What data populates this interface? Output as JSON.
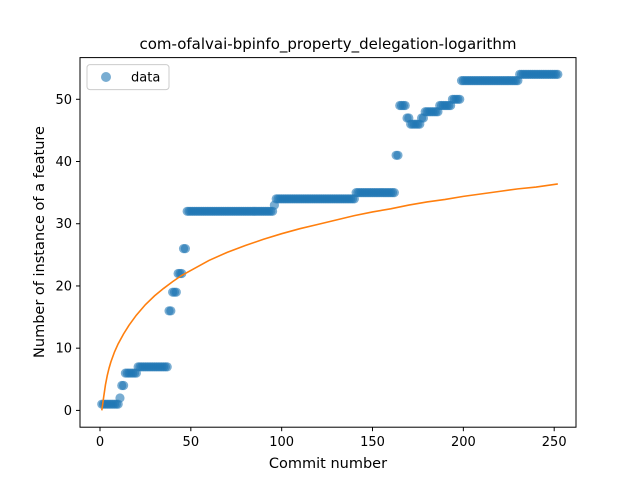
{
  "chart_data": {
    "type": "scatter",
    "title": "com-ofalvai-bpinfo_property_delegation-logarithm",
    "xlabel": "Commit number",
    "ylabel": "Number of instance of a feature",
    "xlim": [
      -11,
      262
    ],
    "ylim": [
      -2.7,
      56.7
    ],
    "xticks": [
      0,
      50,
      100,
      150,
      200,
      250
    ],
    "yticks": [
      0,
      10,
      20,
      30,
      40,
      50
    ],
    "legend": {
      "placement": "top-left",
      "entries": [
        "data"
      ]
    },
    "colors": {
      "data": "#1f77b4",
      "fit": "#ff7f0e"
    },
    "series": [
      {
        "name": "data",
        "kind": "scatter",
        "points": [
          [
            1,
            1
          ],
          [
            2,
            1
          ],
          [
            3,
            1
          ],
          [
            4,
            1
          ],
          [
            5,
            1
          ],
          [
            6,
            1
          ],
          [
            7,
            1
          ],
          [
            8,
            1
          ],
          [
            9,
            1
          ],
          [
            10,
            1
          ],
          [
            11,
            2
          ],
          [
            12,
            4
          ],
          [
            13,
            4
          ],
          [
            14,
            6
          ],
          [
            15,
            6
          ],
          [
            16,
            6
          ],
          [
            17,
            6
          ],
          [
            18,
            6
          ],
          [
            19,
            6
          ],
          [
            20,
            6
          ],
          [
            21,
            7
          ],
          [
            22,
            7
          ],
          [
            23,
            7
          ],
          [
            24,
            7
          ],
          [
            25,
            7
          ],
          [
            26,
            7
          ],
          [
            27,
            7
          ],
          [
            28,
            7
          ],
          [
            29,
            7
          ],
          [
            30,
            7
          ],
          [
            31,
            7
          ],
          [
            32,
            7
          ],
          [
            33,
            7
          ],
          [
            34,
            7
          ],
          [
            35,
            7
          ],
          [
            36,
            7
          ],
          [
            37,
            7
          ],
          [
            38,
            16
          ],
          [
            39,
            16
          ],
          [
            40,
            19
          ],
          [
            41,
            19
          ],
          [
            42,
            19
          ],
          [
            43,
            22
          ],
          [
            44,
            22
          ],
          [
            45,
            22
          ],
          [
            46,
            26
          ],
          [
            47,
            26
          ],
          [
            48,
            32
          ],
          [
            49,
            32
          ],
          [
            50,
            32
          ],
          [
            51,
            32
          ],
          [
            52,
            32
          ],
          [
            53,
            32
          ],
          [
            54,
            32
          ],
          [
            55,
            32
          ],
          [
            56,
            32
          ],
          [
            57,
            32
          ],
          [
            58,
            32
          ],
          [
            59,
            32
          ],
          [
            60,
            32
          ],
          [
            61,
            32
          ],
          [
            62,
            32
          ],
          [
            63,
            32
          ],
          [
            64,
            32
          ],
          [
            65,
            32
          ],
          [
            66,
            32
          ],
          [
            67,
            32
          ],
          [
            68,
            32
          ],
          [
            69,
            32
          ],
          [
            70,
            32
          ],
          [
            71,
            32
          ],
          [
            72,
            32
          ],
          [
            73,
            32
          ],
          [
            74,
            32
          ],
          [
            75,
            32
          ],
          [
            76,
            32
          ],
          [
            77,
            32
          ],
          [
            78,
            32
          ],
          [
            79,
            32
          ],
          [
            80,
            32
          ],
          [
            81,
            32
          ],
          [
            82,
            32
          ],
          [
            83,
            32
          ],
          [
            84,
            32
          ],
          [
            85,
            32
          ],
          [
            86,
            32
          ],
          [
            87,
            32
          ],
          [
            88,
            32
          ],
          [
            89,
            32
          ],
          [
            90,
            32
          ],
          [
            91,
            32
          ],
          [
            92,
            32
          ],
          [
            93,
            32
          ],
          [
            94,
            32
          ],
          [
            95,
            32
          ],
          [
            96,
            33
          ],
          [
            97,
            34
          ],
          [
            98,
            34
          ],
          [
            99,
            34
          ],
          [
            100,
            34
          ],
          [
            101,
            34
          ],
          [
            102,
            34
          ],
          [
            103,
            34
          ],
          [
            104,
            34
          ],
          [
            105,
            34
          ],
          [
            106,
            34
          ],
          [
            107,
            34
          ],
          [
            108,
            34
          ],
          [
            109,
            34
          ],
          [
            110,
            34
          ],
          [
            111,
            34
          ],
          [
            112,
            34
          ],
          [
            113,
            34
          ],
          [
            114,
            34
          ],
          [
            115,
            34
          ],
          [
            116,
            34
          ],
          [
            117,
            34
          ],
          [
            118,
            34
          ],
          [
            119,
            34
          ],
          [
            120,
            34
          ],
          [
            121,
            34
          ],
          [
            122,
            34
          ],
          [
            123,
            34
          ],
          [
            124,
            34
          ],
          [
            125,
            34
          ],
          [
            126,
            34
          ],
          [
            127,
            34
          ],
          [
            128,
            34
          ],
          [
            129,
            34
          ],
          [
            130,
            34
          ],
          [
            131,
            34
          ],
          [
            132,
            34
          ],
          [
            133,
            34
          ],
          [
            134,
            34
          ],
          [
            135,
            34
          ],
          [
            136,
            34
          ],
          [
            137,
            34
          ],
          [
            138,
            34
          ],
          [
            139,
            34
          ],
          [
            140,
            34
          ],
          [
            141,
            35
          ],
          [
            142,
            35
          ],
          [
            143,
            35
          ],
          [
            144,
            35
          ],
          [
            145,
            35
          ],
          [
            146,
            35
          ],
          [
            147,
            35
          ],
          [
            148,
            35
          ],
          [
            149,
            35
          ],
          [
            150,
            35
          ],
          [
            151,
            35
          ],
          [
            152,
            35
          ],
          [
            153,
            35
          ],
          [
            154,
            35
          ],
          [
            155,
            35
          ],
          [
            156,
            35
          ],
          [
            157,
            35
          ],
          [
            158,
            35
          ],
          [
            159,
            35
          ],
          [
            160,
            35
          ],
          [
            161,
            35
          ],
          [
            162,
            35
          ],
          [
            163,
            41
          ],
          [
            164,
            41
          ],
          [
            165,
            49
          ],
          [
            166,
            49
          ],
          [
            167,
            49
          ],
          [
            168,
            49
          ],
          [
            169,
            47
          ],
          [
            170,
            47
          ],
          [
            171,
            46
          ],
          [
            172,
            46
          ],
          [
            173,
            46
          ],
          [
            174,
            46
          ],
          [
            175,
            46
          ],
          [
            176,
            46
          ],
          [
            177,
            47
          ],
          [
            178,
            47
          ],
          [
            179,
            48
          ],
          [
            180,
            48
          ],
          [
            181,
            48
          ],
          [
            182,
            48
          ],
          [
            183,
            48
          ],
          [
            184,
            48
          ],
          [
            185,
            48
          ],
          [
            186,
            48
          ],
          [
            187,
            49
          ],
          [
            188,
            49
          ],
          [
            189,
            49
          ],
          [
            190,
            49
          ],
          [
            191,
            49
          ],
          [
            192,
            49
          ],
          [
            193,
            49
          ],
          [
            194,
            50
          ],
          [
            195,
            50
          ],
          [
            196,
            50
          ],
          [
            197,
            50
          ],
          [
            198,
            50
          ],
          [
            199,
            53
          ],
          [
            200,
            53
          ],
          [
            201,
            53
          ],
          [
            202,
            53
          ],
          [
            203,
            53
          ],
          [
            204,
            53
          ],
          [
            205,
            53
          ],
          [
            206,
            53
          ],
          [
            207,
            53
          ],
          [
            208,
            53
          ],
          [
            209,
            53
          ],
          [
            210,
            53
          ],
          [
            211,
            53
          ],
          [
            212,
            53
          ],
          [
            213,
            53
          ],
          [
            214,
            53
          ],
          [
            215,
            53
          ],
          [
            216,
            53
          ],
          [
            217,
            53
          ],
          [
            218,
            53
          ],
          [
            219,
            53
          ],
          [
            220,
            53
          ],
          [
            221,
            53
          ],
          [
            222,
            53
          ],
          [
            223,
            53
          ],
          [
            224,
            53
          ],
          [
            225,
            53
          ],
          [
            226,
            53
          ],
          [
            227,
            53
          ],
          [
            228,
            53
          ],
          [
            229,
            53
          ],
          [
            230,
            53
          ],
          [
            231,
            54
          ],
          [
            232,
            54
          ],
          [
            233,
            54
          ],
          [
            234,
            54
          ],
          [
            235,
            54
          ],
          [
            236,
            54
          ],
          [
            237,
            54
          ],
          [
            238,
            54
          ],
          [
            239,
            54
          ],
          [
            240,
            54
          ],
          [
            241,
            54
          ],
          [
            242,
            54
          ],
          [
            243,
            54
          ],
          [
            244,
            54
          ],
          [
            245,
            54
          ],
          [
            246,
            54
          ],
          [
            247,
            54
          ],
          [
            248,
            54
          ],
          [
            249,
            54
          ],
          [
            250,
            54
          ],
          [
            251,
            54
          ],
          [
            252,
            54
          ]
        ]
      },
      {
        "kind": "line",
        "points": [
          [
            1,
            0
          ],
          [
            2,
            2.1
          ],
          [
            3,
            4.1
          ],
          [
            4,
            5.6
          ],
          [
            5,
            6.8
          ],
          [
            6,
            7.8
          ],
          [
            8,
            9.4
          ],
          [
            10,
            10.7
          ],
          [
            13,
            12.3
          ],
          [
            16,
            13.7
          ],
          [
            20,
            15.3
          ],
          [
            25,
            17.0
          ],
          [
            30,
            18.4
          ],
          [
            35,
            19.6
          ],
          [
            40,
            20.7
          ],
          [
            45,
            21.7
          ],
          [
            50,
            22.5
          ],
          [
            60,
            24.1
          ],
          [
            70,
            25.4
          ],
          [
            80,
            26.5
          ],
          [
            90,
            27.5
          ],
          [
            100,
            28.4
          ],
          [
            110,
            29.2
          ],
          [
            120,
            29.9
          ],
          [
            130,
            30.6
          ],
          [
            140,
            31.3
          ],
          [
            150,
            31.9
          ],
          [
            160,
            32.4
          ],
          [
            170,
            33.0
          ],
          [
            180,
            33.5
          ],
          [
            190,
            33.9
          ],
          [
            200,
            34.4
          ],
          [
            210,
            34.8
          ],
          [
            220,
            35.2
          ],
          [
            230,
            35.6
          ],
          [
            240,
            35.9
          ],
          [
            252,
            36.4
          ]
        ]
      }
    ]
  }
}
